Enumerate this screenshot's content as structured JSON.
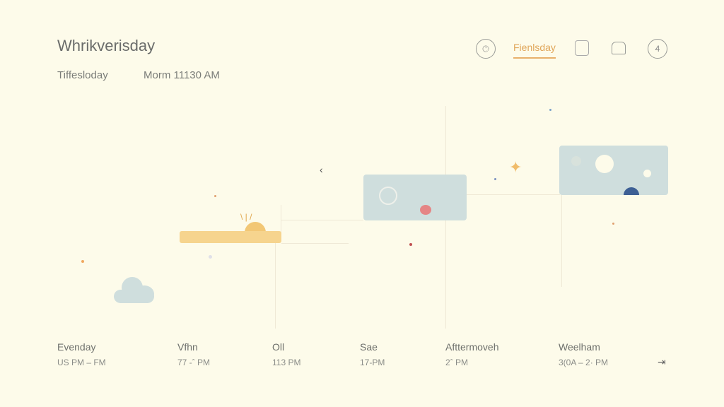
{
  "header": {
    "title": "Whrikverisday",
    "day_label": "Tiffesloday",
    "time_label": "Morm 11130 AM"
  },
  "toolbar": {
    "active_tab": "Fienlsday",
    "icons": [
      "clock-icon",
      "person-icon",
      "calendar-icon",
      "alarm-icon"
    ]
  },
  "timeline": {
    "slots": [
      {
        "name": "Evenday",
        "time": "US PM  –  FM"
      },
      {
        "name": "Vfhn",
        "time": "77 -ˆ PM"
      },
      {
        "name": "Oll",
        "time": "113 PM"
      },
      {
        "name": "Sae",
        "time": "17-PM"
      },
      {
        "name": "Afttermoveh",
        "time": "2ˆ PM"
      },
      {
        "name": "Weelham",
        "time": "3(0A  –  2· PM"
      }
    ]
  },
  "colors": {
    "accent": "#e8b06a",
    "sun_bar": "#f6d48e",
    "card": "#cfdedd",
    "background": "#fdfbea"
  }
}
